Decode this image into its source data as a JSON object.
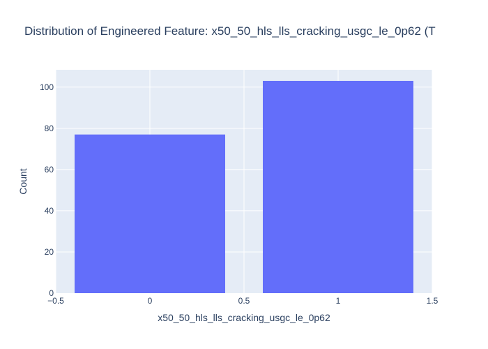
{
  "chart_data": {
    "type": "bar",
    "title": "Distribution of Engineered Feature: x50_50_hls_lls_cracking_usgc_le_0p62 (T",
    "xlabel": "x50_50_hls_lls_cracking_usgc_le_0p62",
    "ylabel": "Count",
    "x": [
      0,
      1
    ],
    "values": [
      77,
      103
    ],
    "bar_width": 0.8,
    "xlim": [
      -0.5,
      1.5
    ],
    "ylim": [
      0,
      108.4
    ],
    "xticks": [
      -0.5,
      0,
      0.5,
      1,
      1.5
    ],
    "xtick_labels": [
      "−0.5",
      "0",
      "0.5",
      "1",
      "1.5"
    ],
    "yticks": [
      0,
      20,
      40,
      60,
      80,
      100
    ],
    "ytick_labels": [
      "0",
      "20",
      "40",
      "60",
      "80",
      "100"
    ],
    "grid": true,
    "colors": {
      "bar": "#636efa",
      "plot_bg": "#e5ecf6",
      "grid": "#ffffff",
      "text": "#2a3f5f"
    }
  }
}
